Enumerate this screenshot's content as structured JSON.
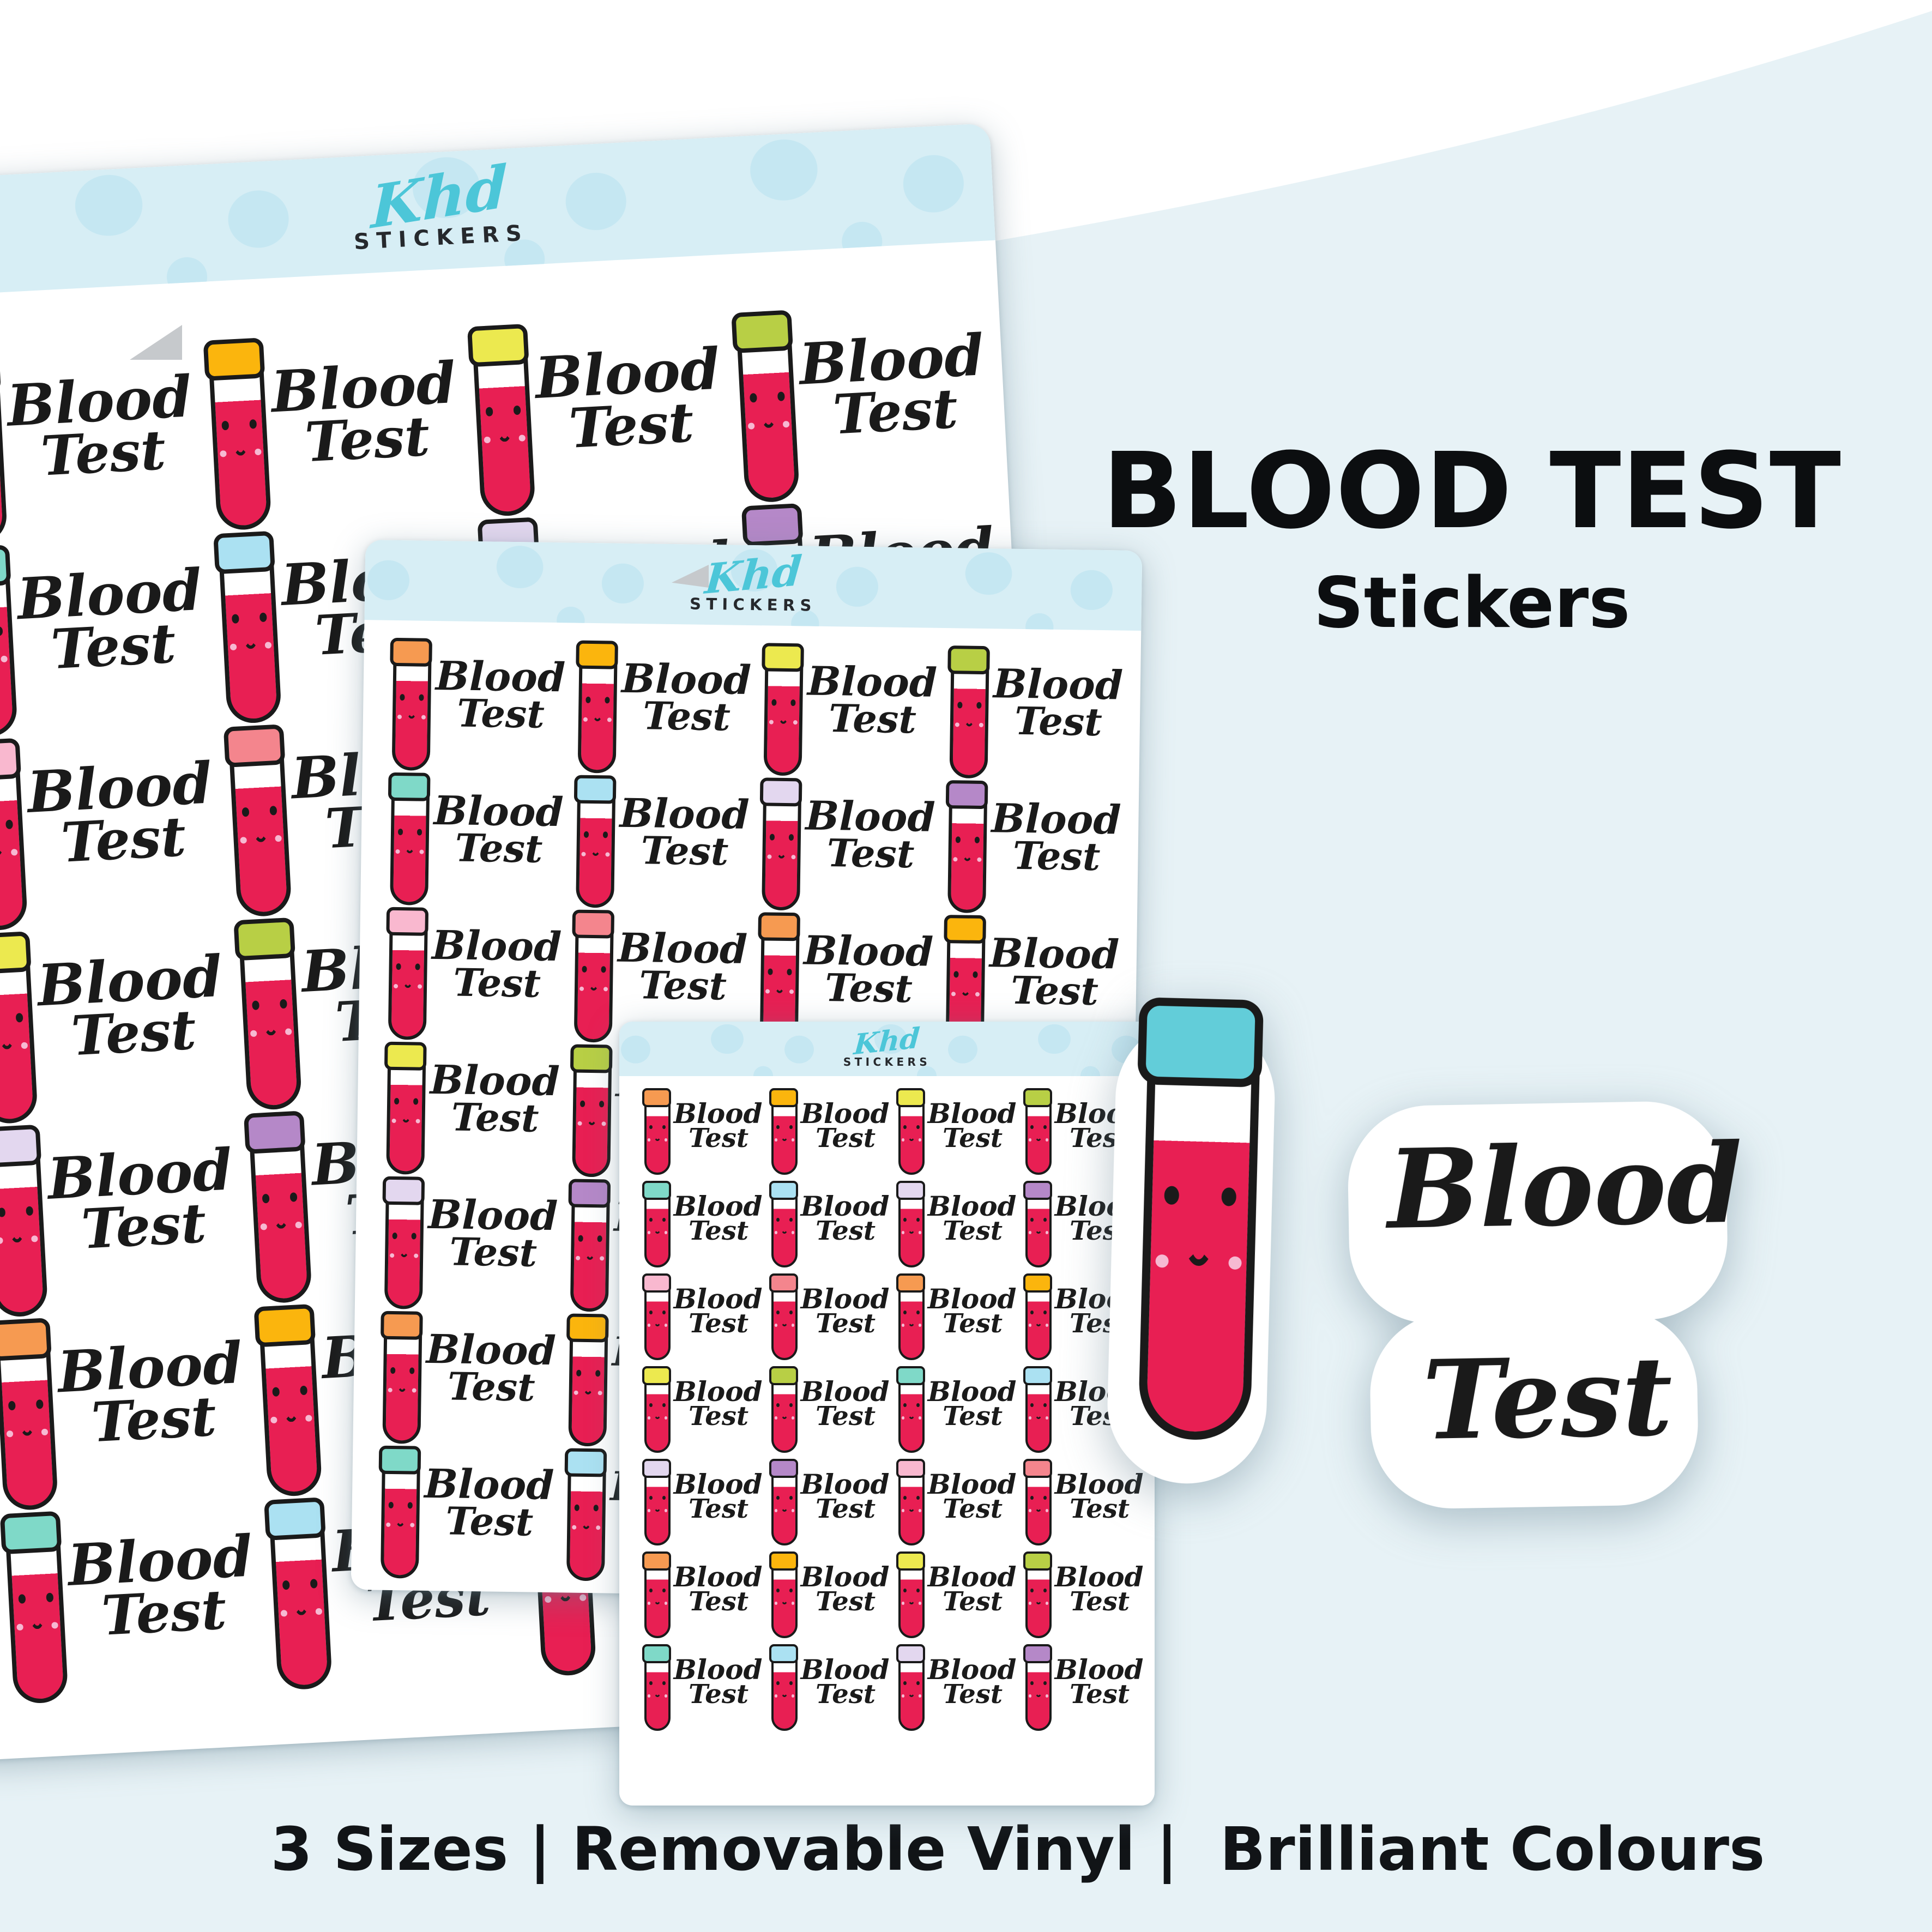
{
  "page": {
    "background_hex": "#ffffff",
    "wave_hex": "#e7f2f6",
    "caption": "3 Sizes | Removable Vinyl |  Brilliant Colours",
    "caption_color": "#111417"
  },
  "brand": {
    "script": "Khd",
    "word": "STICKERS",
    "script_hex": "#4cc6d8",
    "band_hex": "#d7eef5",
    "dot_hex": "#c5e7f2"
  },
  "title": {
    "heading": "BLOOD TEST",
    "subheading": "Stickers"
  },
  "sticker": {
    "word1": "Blood",
    "word2": "Test",
    "blood_hex": "#e81f53",
    "outline_hex": "#1a1a1a",
    "cheek_hex": "#f6b9d2"
  },
  "cap_cycle": [
    {
      "name": "orange",
      "hex": "#f69a51"
    },
    {
      "name": "amber",
      "hex": "#fbb50d"
    },
    {
      "name": "pale-yellow",
      "hex": "#ece94f"
    },
    {
      "name": "lime",
      "hex": "#b8cf45"
    },
    {
      "name": "teal",
      "hex": "#7fd9c8"
    },
    {
      "name": "light-blue",
      "hex": "#abe1f2"
    },
    {
      "name": "pale-lavender",
      "hex": "#e3d7ef"
    },
    {
      "name": "purple",
      "hex": "#b588c8"
    },
    {
      "name": "pink",
      "hex": "#f9b8cf"
    },
    {
      "name": "salmon",
      "hex": "#f4858d"
    }
  ],
  "sheets": [
    {
      "id": "sheet-large",
      "label": "large sheet",
      "rows": 7,
      "cols": 4
    },
    {
      "id": "sheet-medium",
      "label": "medium sheet",
      "rows": 7,
      "cols": 4
    },
    {
      "id": "sheet-small",
      "label": "small sheet",
      "rows": 7,
      "cols": 4
    }
  ],
  "hero": {
    "cap_name": "teal",
    "cap_hex": "#62cdd9"
  }
}
